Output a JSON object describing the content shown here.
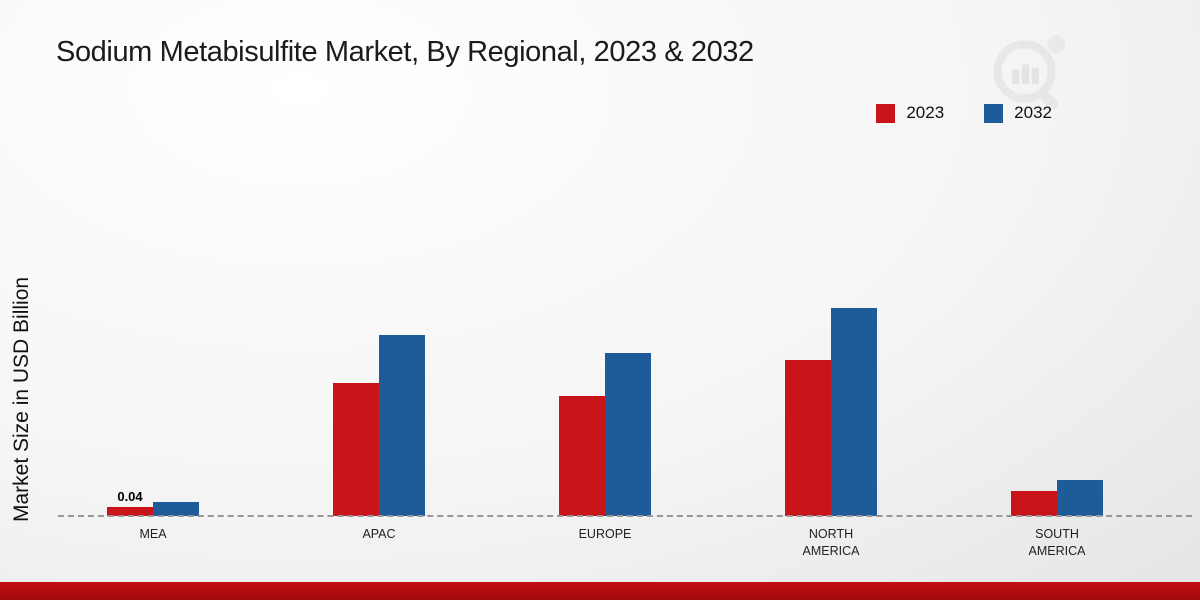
{
  "page": {
    "title": "Sodium Metabisulfite Market, By Regional, 2023 & 2032",
    "ylabel": "Market Size in USD Billion"
  },
  "icons": {
    "logo": "bar-chart-magnifier-watermark"
  },
  "colors": {
    "series_2023": "#c9141a",
    "series_2032": "#1f5b99",
    "footer_strip": "#b00c10"
  },
  "chart_data": {
    "type": "bar",
    "title": "Sodium Metabisulfite Market, By Regional, 2023 & 2032",
    "xlabel": "",
    "ylabel": "Market Size in USD Billion",
    "categories": [
      "MEA",
      "APAC",
      "EUROPE",
      "NORTH AMERICA",
      "SOUTH AMERICA"
    ],
    "series": [
      {
        "name": "2023",
        "color": "#c9141a",
        "values": [
          0.04,
          0.59,
          0.53,
          0.69,
          0.11
        ]
      },
      {
        "name": "2032",
        "color": "#1f5b99",
        "values": [
          0.06,
          0.8,
          0.72,
          0.92,
          0.16
        ]
      }
    ],
    "ylim": [
      0,
      1.0
    ],
    "grid": false,
    "baseline_style": "dashed",
    "legend_position": "top-right",
    "annotations": [
      {
        "category": "MEA",
        "series": "2023",
        "text": "0.04"
      }
    ]
  }
}
